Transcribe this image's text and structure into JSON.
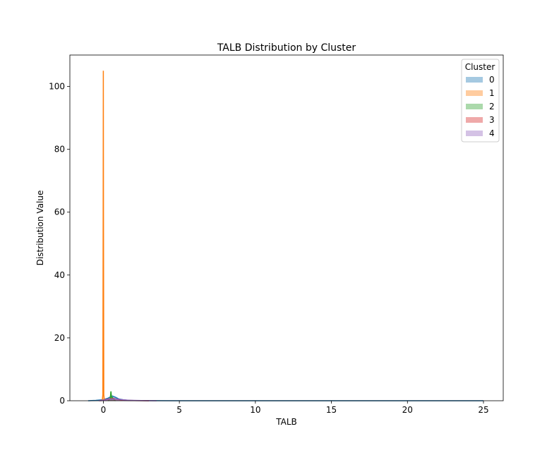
{
  "chart_data": {
    "type": "area",
    "title": "TALB Distribution by Cluster",
    "xlabel": "TALB",
    "ylabel": "Distribution Value",
    "xlim": [
      -2.2,
      26.3
    ],
    "ylim": [
      0,
      110
    ],
    "xticks": [
      0,
      5,
      10,
      15,
      20,
      25
    ],
    "yticks": [
      0,
      20,
      40,
      60,
      80,
      100
    ],
    "grid": false,
    "legend": {
      "title": "Cluster",
      "placement": "top-right"
    },
    "series": [
      {
        "name": "0",
        "color": "#1f77b4",
        "x": [
          -1.0,
          -0.5,
          0.0,
          0.3,
          0.5,
          0.6,
          0.8,
          1.0,
          1.3,
          1.6,
          2.0,
          3.0,
          5.0,
          10.0,
          15.0,
          20.0,
          25.0
        ],
        "y": [
          0.0,
          0.1,
          0.35,
          0.8,
          1.3,
          1.5,
          1.1,
          0.6,
          0.3,
          0.15,
          0.05,
          0.02,
          0.01,
          0.0,
          0.0,
          0.0,
          0.0
        ]
      },
      {
        "name": "1",
        "color": "#ff7f0e",
        "x": [
          -0.07,
          -0.03,
          -0.01,
          0.0,
          0.01,
          0.03,
          0.07
        ],
        "y": [
          0.0,
          2.0,
          60.0,
          105.0,
          60.0,
          2.0,
          0.0
        ]
      },
      {
        "name": "2",
        "color": "#2ca02c",
        "x": [
          0.3,
          0.45,
          0.5,
          0.55,
          0.6,
          0.7,
          0.8
        ],
        "y": [
          0.0,
          0.5,
          3.0,
          0.6,
          1.0,
          0.3,
          0.0
        ]
      },
      {
        "name": "3",
        "color": "#d62728",
        "x": [
          -0.2,
          0.1,
          0.4,
          0.7,
          1.0,
          1.4,
          2.0,
          3.0
        ],
        "y": [
          0.0,
          0.3,
          0.6,
          0.7,
          0.4,
          0.15,
          0.05,
          0.0
        ]
      },
      {
        "name": "4",
        "color": "#9467bd",
        "x": [
          -0.3,
          0.0,
          0.4,
          0.8,
          1.2,
          1.7,
          2.5,
          3.5
        ],
        "y": [
          0.0,
          0.2,
          0.5,
          0.6,
          0.35,
          0.15,
          0.05,
          0.0
        ]
      }
    ]
  }
}
